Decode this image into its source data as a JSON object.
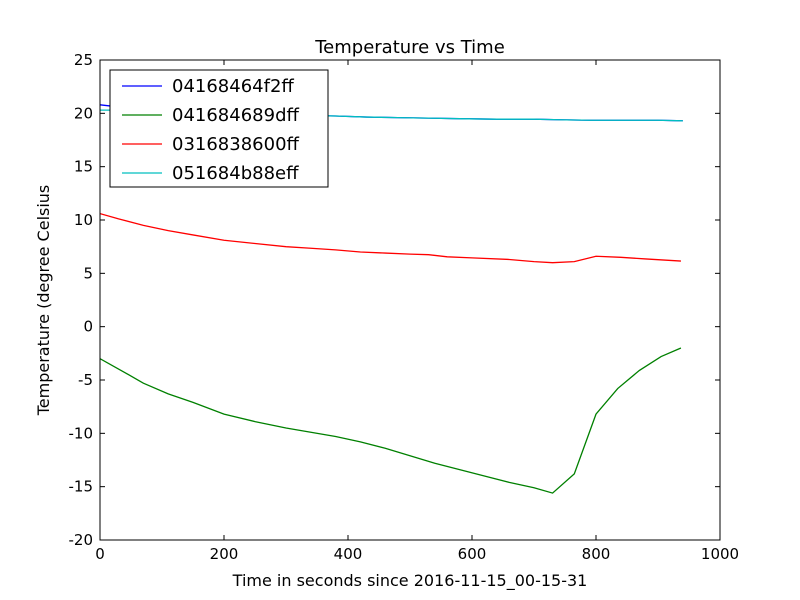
{
  "chart_data": {
    "type": "line",
    "title": "Temperature vs Time",
    "xlabel": "Time in seconds since 2016-11-15_00-15-31",
    "ylabel": "Temperature (degree Celsius",
    "xlim": [
      0,
      1000
    ],
    "ylim": [
      -20,
      25
    ],
    "xticks": [
      0,
      200,
      400,
      600,
      800,
      1000
    ],
    "yticks": [
      -20,
      -15,
      -10,
      -5,
      0,
      5,
      10,
      15,
      20,
      25
    ],
    "grid": false,
    "legend_position": "top-left",
    "series": [
      {
        "name": "04168464f2ff",
        "color": "#0000ff",
        "points": [
          [
            0,
            20.8
          ],
          [
            30,
            20.6
          ],
          [
            70,
            20.4
          ],
          [
            120,
            20.2
          ],
          [
            170,
            20.1
          ],
          [
            220,
            20.0
          ],
          [
            280,
            19.9
          ],
          [
            330,
            19.8
          ],
          [
            380,
            19.75
          ],
          [
            430,
            19.65
          ],
          [
            480,
            19.6
          ],
          [
            530,
            19.55
          ],
          [
            580,
            19.5
          ],
          [
            640,
            19.45
          ],
          [
            700,
            19.45
          ],
          [
            740,
            19.4
          ],
          [
            790,
            19.35
          ],
          [
            840,
            19.35
          ],
          [
            900,
            19.35
          ],
          [
            940,
            19.3
          ]
        ]
      },
      {
        "name": "041684689dff",
        "color": "#008000",
        "points": [
          [
            0,
            -3.0
          ],
          [
            40,
            -4.3
          ],
          [
            70,
            -5.3
          ],
          [
            110,
            -6.3
          ],
          [
            150,
            -7.1
          ],
          [
            200,
            -8.2
          ],
          [
            250,
            -8.9
          ],
          [
            300,
            -9.5
          ],
          [
            340,
            -9.9
          ],
          [
            380,
            -10.3
          ],
          [
            420,
            -10.8
          ],
          [
            460,
            -11.4
          ],
          [
            500,
            -12.1
          ],
          [
            540,
            -12.8
          ],
          [
            580,
            -13.4
          ],
          [
            620,
            -14.0
          ],
          [
            660,
            -14.6
          ],
          [
            700,
            -15.1
          ],
          [
            730,
            -15.6
          ],
          [
            765,
            -13.8
          ],
          [
            800,
            -8.2
          ],
          [
            835,
            -5.8
          ],
          [
            870,
            -4.1
          ],
          [
            905,
            -2.8
          ],
          [
            937,
            -2.0
          ]
        ]
      },
      {
        "name": "0316838600ff",
        "color": "#ff0000",
        "points": [
          [
            0,
            10.6
          ],
          [
            30,
            10.1
          ],
          [
            70,
            9.5
          ],
          [
            110,
            9.0
          ],
          [
            150,
            8.6
          ],
          [
            200,
            8.1
          ],
          [
            250,
            7.8
          ],
          [
            300,
            7.5
          ],
          [
            340,
            7.35
          ],
          [
            380,
            7.2
          ],
          [
            420,
            7.0
          ],
          [
            460,
            6.9
          ],
          [
            500,
            6.8
          ],
          [
            530,
            6.75
          ],
          [
            560,
            6.55
          ],
          [
            600,
            6.45
          ],
          [
            660,
            6.3
          ],
          [
            700,
            6.1
          ],
          [
            730,
            6.0
          ],
          [
            765,
            6.1
          ],
          [
            800,
            6.6
          ],
          [
            840,
            6.5
          ],
          [
            880,
            6.35
          ],
          [
            937,
            6.15
          ]
        ]
      },
      {
        "name": "051684b88eff",
        "color": "#00bfbf",
        "points": [
          [
            0,
            20.3
          ],
          [
            30,
            20.3
          ],
          [
            70,
            20.25
          ],
          [
            120,
            20.15
          ],
          [
            170,
            20.05
          ],
          [
            220,
            19.95
          ],
          [
            280,
            19.85
          ],
          [
            330,
            19.8
          ],
          [
            380,
            19.75
          ],
          [
            430,
            19.65
          ],
          [
            480,
            19.6
          ],
          [
            530,
            19.55
          ],
          [
            580,
            19.5
          ],
          [
            640,
            19.45
          ],
          [
            700,
            19.45
          ],
          [
            740,
            19.4
          ],
          [
            790,
            19.35
          ],
          [
            840,
            19.35
          ],
          [
            900,
            19.35
          ],
          [
            940,
            19.3
          ]
        ]
      }
    ]
  }
}
